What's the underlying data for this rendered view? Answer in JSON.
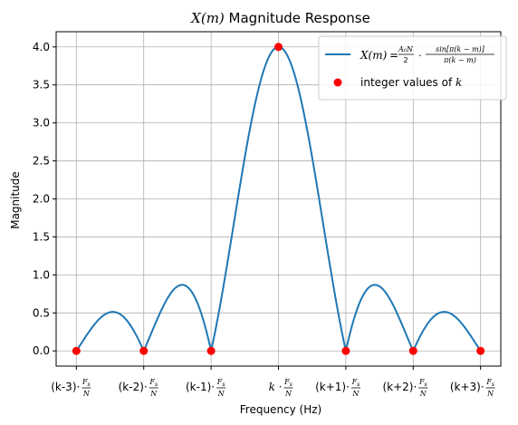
{
  "chart_data": {
    "type": "line",
    "title": "X(m) Magnitude Response",
    "title_parts": {
      "italic": "X(m)",
      "rest": " Magnitude Response"
    },
    "xlabel": "Frequency (Hz)",
    "ylabel": "Magnitude",
    "x_range": [
      -3,
      3
    ],
    "ylim": [
      -0.2,
      4.2
    ],
    "grid": true,
    "legend_position": "top-right",
    "y_ticks": [
      "0.0",
      "0.5",
      "1.0",
      "1.5",
      "2.0",
      "2.5",
      "3.0",
      "3.5",
      "4.0"
    ],
    "x_ticks": [
      {
        "value": -3,
        "prefix": "(k-3)·"
      },
      {
        "value": -2,
        "prefix": "(k-2)·"
      },
      {
        "value": -1,
        "prefix": "(k-1)·"
      },
      {
        "value": 0,
        "prefix": "k · "
      },
      {
        "value": 1,
        "prefix": "(k+1)·"
      },
      {
        "value": 2,
        "prefix": "(k+2)·"
      },
      {
        "value": 3,
        "prefix": "(k+3)·"
      }
    ],
    "x_tick_fraction": {
      "num": "Fs",
      "den": "N"
    },
    "series": [
      {
        "name": "X(m) = (A0·N / 2) · sin[π(k − m)] / π(k − m)",
        "kind": "line",
        "color": "#1f77b4",
        "function": "4 · |sinc(m − k)|",
        "peak": 4.0,
        "x": [
          -3,
          -2.5,
          -2,
          -1.5,
          -1,
          -0.5,
          0,
          0.5,
          1,
          1.5,
          2,
          2.5,
          3
        ],
        "y": [
          0.0,
          0.51,
          0.0,
          0.85,
          0.0,
          2.55,
          4.0,
          2.55,
          0.0,
          0.85,
          0.0,
          0.51,
          0.0
        ]
      },
      {
        "name": "integer values of k",
        "name_parts": {
          "text": "integer values of ",
          "italic": "k"
        },
        "kind": "markers",
        "color": "#ff0000",
        "x": [
          -3,
          -2,
          -1,
          0,
          1,
          2,
          3
        ],
        "y": [
          0,
          0,
          0,
          4,
          0,
          0,
          0
        ]
      }
    ]
  }
}
